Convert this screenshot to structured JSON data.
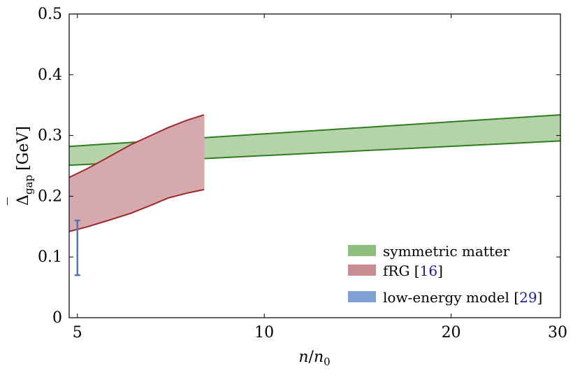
{
  "chart_data": {
    "type": "area",
    "xlabel": "n/n_0",
    "ylabel": "Δ̄_gap [GeV]",
    "x_scale": "log",
    "xlim": [
      4.85,
      30
    ],
    "ylim": [
      0,
      0.5
    ],
    "x_ticks": [
      5,
      10,
      20,
      30
    ],
    "y_ticks": [
      0,
      0.1,
      0.2,
      0.3,
      0.4,
      0.5
    ],
    "x_tick_labels": [
      "5",
      "10",
      "20",
      "30"
    ],
    "y_tick_labels": [
      "0",
      "0.1",
      "0.2",
      "0.3",
      "0.4",
      "0.5"
    ],
    "grid": false,
    "legend_position": "bottom-right",
    "series": [
      {
        "name": "symmetric matter",
        "kind": "band",
        "color": "#2e7d1f",
        "fill": "#b5d3a8",
        "x": [
          4.85,
          30
        ],
        "lower": [
          0.251,
          0.291
        ],
        "upper": [
          0.282,
          0.334
        ]
      },
      {
        "name": "fRG",
        "ref": "16",
        "kind": "band",
        "color": "#a0282d",
        "fill": "#d6a9ae",
        "x": [
          4.85,
          5.2,
          5.6,
          6.1,
          6.6,
          7.0,
          7.5,
          8.0
        ],
        "lower": [
          0.142,
          0.15,
          0.16,
          0.172,
          0.186,
          0.197,
          0.205,
          0.211
        ],
        "upper": [
          0.231,
          0.246,
          0.264,
          0.285,
          0.301,
          0.313,
          0.325,
          0.334
        ]
      },
      {
        "name": "low-energy model",
        "ref": "29",
        "kind": "errorbar",
        "color": "#4a78c0",
        "fill": "#7ea0d4",
        "x": 5,
        "low": 0.07,
        "high": 0.16
      }
    ]
  },
  "labels": {
    "xlabel_main": "n",
    "xlabel_slash": "/",
    "xlabel_base": "n",
    "xlabel_sub": "0",
    "ylabel_symbol": "Δ",
    "ylabel_bar": "‾",
    "ylabel_sub": "gap",
    "ylabel_unit": "[GeV]"
  },
  "legend": {
    "entries": [
      {
        "text": "symmetric matter",
        "ref": ""
      },
      {
        "text": "fRG [",
        "ref": "16",
        "close": "]"
      },
      {
        "text": "low-energy model [",
        "ref": "29",
        "close": "]"
      }
    ]
  }
}
